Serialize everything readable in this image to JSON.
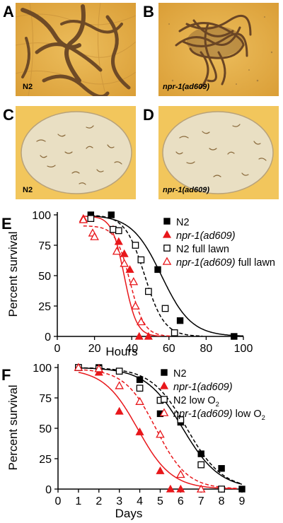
{
  "panel_labels": {
    "A": "A",
    "B": "B",
    "C": "C",
    "D": "D",
    "E": "E",
    "F": "F"
  },
  "photo_captions": {
    "A": "N2",
    "B": "npr-1(ad609)",
    "C": "N2",
    "D": "npr-1(ad609)"
  },
  "colors": {
    "photo_bg": "#e7b24a",
    "worm": "#6e4a26",
    "lawn": "#e9dfc3",
    "n2": "#000000",
    "npr1": "#e8171b"
  },
  "chart_data": [
    {
      "type": "scatter",
      "xlabel": "Hours",
      "ylabel": "Percent survival",
      "xlim": [
        0,
        100
      ],
      "ylim": [
        0,
        100
      ],
      "xticks": [
        "0",
        "20",
        "40",
        "60",
        "80",
        "100"
      ],
      "yticks": [
        "0",
        "25",
        "50",
        "75",
        "100"
      ],
      "legend_position": "top-right",
      "series": [
        {
          "name": "N2",
          "name_italic": "",
          "name_suffix": "",
          "color": "#000000",
          "marker": "square-filled",
          "line": "solid",
          "x": [
            18,
            29,
            54,
            66,
            95
          ],
          "values": [
            100,
            100,
            55,
            13,
            0
          ],
          "fit": {
            "x50": 56,
            "k": 0.125,
            "top": 100
          }
        },
        {
          "name": "",
          "name_italic": "npr-1(ad609)",
          "name_suffix": "",
          "color": "#e8171b",
          "marker": "triangle-filled",
          "line": "solid",
          "x": [
            14,
            30,
            33,
            36,
            39,
            44,
            49
          ],
          "values": [
            97,
            88,
            78,
            68,
            55,
            0,
            0
          ],
          "fit": {
            "x50": 36,
            "k": 0.3,
            "top": 99
          }
        },
        {
          "name": "N2 full lawn",
          "name_italic": "",
          "name_suffix": "",
          "color": "#000000",
          "marker": "square-open",
          "line": "dashed",
          "x": [
            18,
            30,
            33,
            42,
            45,
            49,
            58,
            63
          ],
          "values": [
            97,
            88,
            87,
            75,
            63,
            37,
            23,
            3
          ],
          "fit": {
            "x50": 47,
            "k": 0.19,
            "top": 100
          }
        },
        {
          "name": "",
          "name_italic": "npr-1(ad609)",
          "name_suffix": " full lawn",
          "color": "#e8171b",
          "marker": "triangle-open",
          "line": "dashed",
          "x": [
            14,
            19,
            20,
            32,
            36,
            41,
            42,
            45
          ],
          "values": [
            96,
            85,
            82,
            70,
            60,
            45,
            25,
            12
          ],
          "fit": {
            "x50": 39,
            "k": 0.26,
            "top": 91
          }
        }
      ]
    },
    {
      "type": "scatter",
      "xlabel": "Days",
      "ylabel": "Percent survival",
      "xlim": [
        0,
        9
      ],
      "ylim": [
        0,
        100
      ],
      "xticks": [
        "0",
        "1",
        "2",
        "3",
        "4",
        "5",
        "6",
        "7",
        "8",
        "9"
      ],
      "yticks": [
        "0",
        "25",
        "50",
        "75",
        "100"
      ],
      "legend_position": "top-right",
      "series": [
        {
          "name": "N2",
          "name_italic": "",
          "name_suffix": "",
          "color": "#000000",
          "marker": "square-filled",
          "line": "solid",
          "x": [
            1,
            2,
            3,
            4,
            5,
            6,
            7,
            8,
            9
          ],
          "values": [
            100,
            100,
            97,
            90,
            62,
            55,
            29,
            17,
            0
          ],
          "fit": {
            "x50": 6.1,
            "k": 1.1,
            "top": 100
          }
        },
        {
          "name": "",
          "name_italic": "npr-1(ad609)",
          "name_suffix": "",
          "color": "#e8171b",
          "marker": "triangle-filled",
          "line": "solid",
          "x": [
            1,
            2,
            3,
            4,
            5,
            5.5,
            6
          ],
          "values": [
            100,
            96,
            64,
            47,
            15,
            0,
            0
          ],
          "fit": {
            "x50": 3.9,
            "k": 1.2,
            "top": 99
          }
        },
        {
          "name": "N2 low O",
          "name_italic": "",
          "name_suffix": "",
          "name_sub": "2",
          "color": "#000000",
          "marker": "square-open",
          "line": "dashed",
          "x": [
            1,
            2,
            3,
            4,
            5,
            6,
            7,
            8
          ],
          "values": [
            100,
            99,
            97,
            83,
            73,
            57,
            20,
            0
          ],
          "fit": {
            "x50": 6.3,
            "k": 1.15,
            "top": 100
          }
        },
        {
          "name": "",
          "name_italic": "npr-1(ad609)",
          "name_suffix": " low O",
          "name_sub": "2",
          "color": "#e8171b",
          "marker": "triangle-open",
          "line": "dashed",
          "x": [
            1,
            2,
            3,
            4,
            5,
            6,
            7
          ],
          "values": [
            100,
            99,
            85,
            72,
            45,
            12,
            0
          ],
          "fit": {
            "x50": 4.8,
            "k": 1.3,
            "top": 99
          }
        }
      ]
    }
  ]
}
